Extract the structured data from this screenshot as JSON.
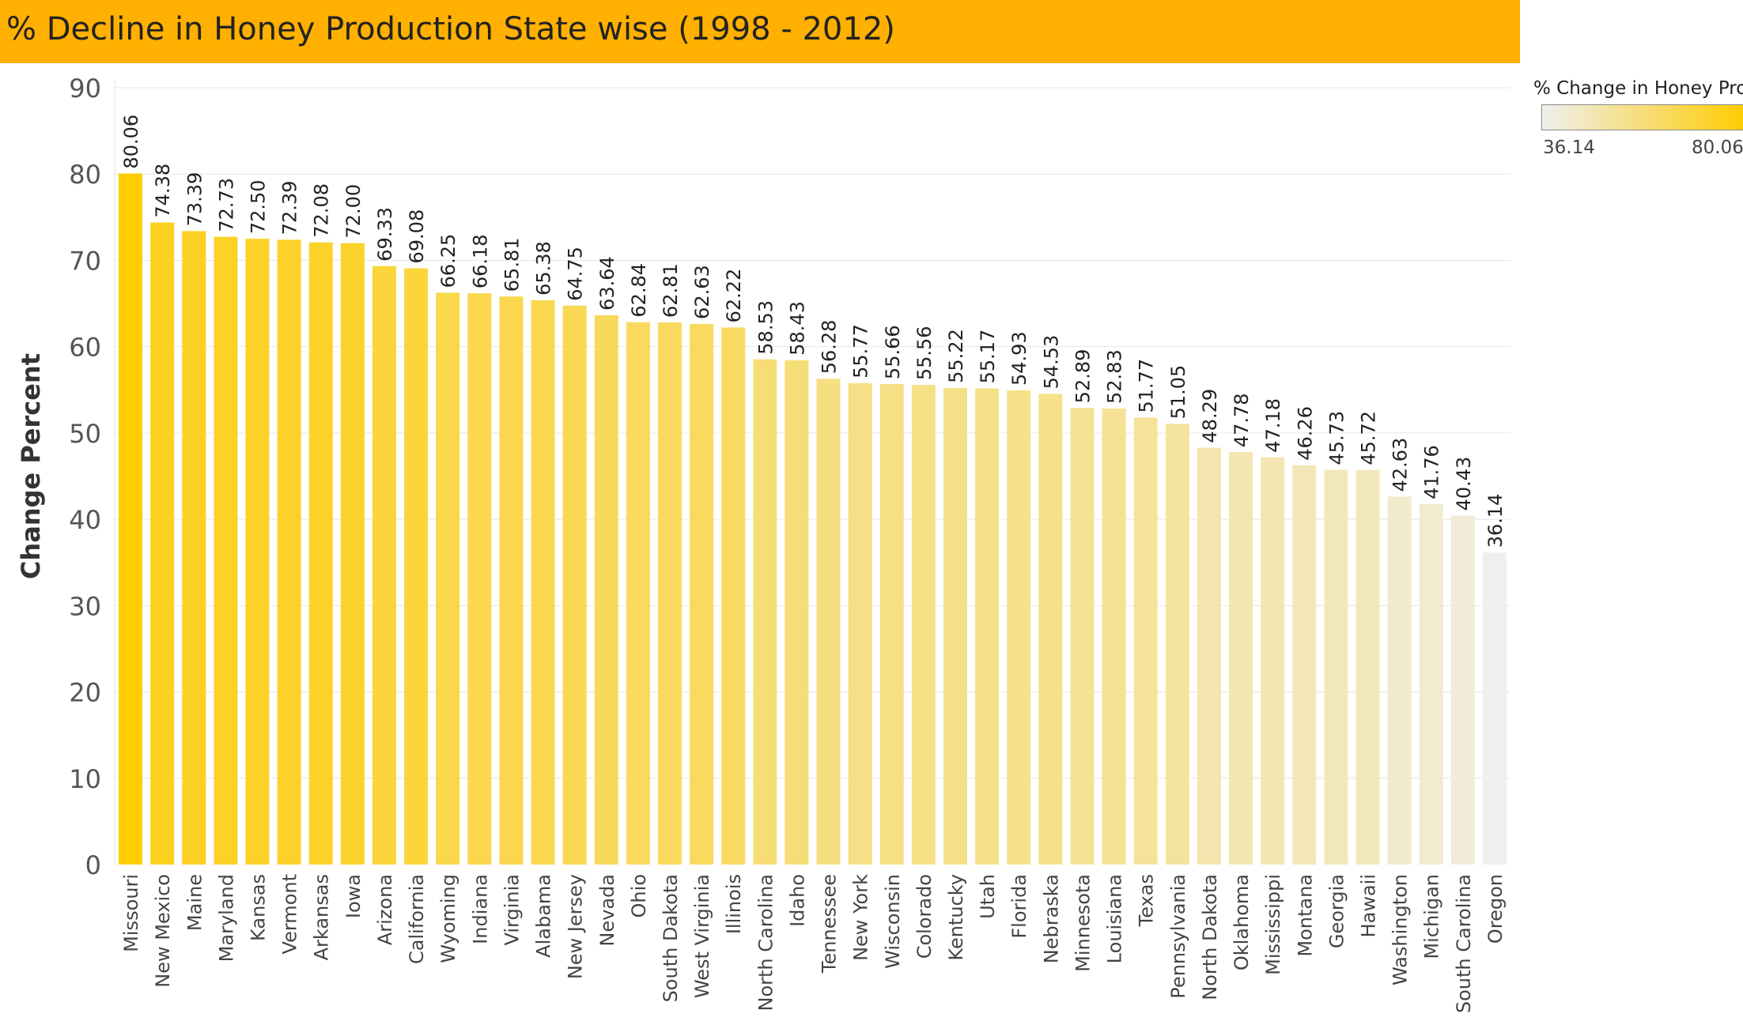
{
  "title": "% Decline in Honey Production State wise (1998 - 2012)",
  "legend": {
    "title": "% Change in Honey Pro..",
    "min_label": "36.14",
    "max_label": "80.06",
    "color_low": "#EFEFEF",
    "color_high": "#FFCC00"
  },
  "colors": {
    "title_bar": "#FFB000",
    "grid": "#E6E6E6"
  },
  "chart_data": {
    "type": "bar",
    "ylabel": "Change Percent",
    "xlabel": "",
    "ylim": [
      0,
      90
    ],
    "yticks": [
      0,
      10,
      20,
      30,
      40,
      50,
      60,
      70,
      80,
      90
    ],
    "grid": true,
    "categories": [
      "Missouri",
      "New Mexico",
      "Maine",
      "Maryland",
      "Kansas",
      "Vermont",
      "Arkansas",
      "Iowa",
      "Arizona",
      "California",
      "Wyoming",
      "Indiana",
      "Virginia",
      "Alabama",
      "New Jersey",
      "Nevada",
      "Ohio",
      "South Dakota",
      "West Virginia",
      "Illinois",
      "North Carolina",
      "Idaho",
      "Tennessee",
      "New York",
      "Wisconsin",
      "Colorado",
      "Kentucky",
      "Utah",
      "Florida",
      "Nebraska",
      "Minnesota",
      "Louisiana",
      "Texas",
      "Pennsylvania",
      "North Dakota",
      "Oklahoma",
      "Mississippi",
      "Montana",
      "Georgia",
      "Hawaii",
      "Washington",
      "Michigan",
      "South Carolina",
      "Oregon"
    ],
    "values": [
      80.06,
      74.38,
      73.39,
      72.73,
      72.5,
      72.39,
      72.08,
      72.0,
      69.33,
      69.08,
      66.25,
      66.18,
      65.81,
      65.38,
      64.75,
      63.64,
      62.84,
      62.81,
      62.63,
      62.22,
      58.53,
      58.43,
      56.28,
      55.77,
      55.66,
      55.56,
      55.22,
      55.17,
      54.93,
      54.53,
      52.89,
      52.83,
      51.77,
      51.05,
      48.29,
      47.78,
      47.18,
      46.26,
      45.73,
      45.72,
      42.63,
      41.76,
      40.43,
      36.14
    ],
    "labels": [
      "80.06",
      "74.38",
      "73.39",
      "72.73",
      "72.50",
      "72.39",
      "72.08",
      "72.00",
      "69.33",
      "69.08",
      "66.25",
      "66.18",
      "65.81",
      "65.38",
      "64.75",
      "63.64",
      "62.84",
      "62.81",
      "62.63",
      "62.22",
      "58.53",
      "58.43",
      "56.28",
      "55.77",
      "55.66",
      "55.56",
      "55.22",
      "55.17",
      "54.93",
      "54.53",
      "52.89",
      "52.83",
      "51.77",
      "51.05",
      "48.29",
      "47.78",
      "47.18",
      "46.26",
      "45.73",
      "45.72",
      "42.63",
      "41.76",
      "40.43",
      "36.14"
    ]
  }
}
